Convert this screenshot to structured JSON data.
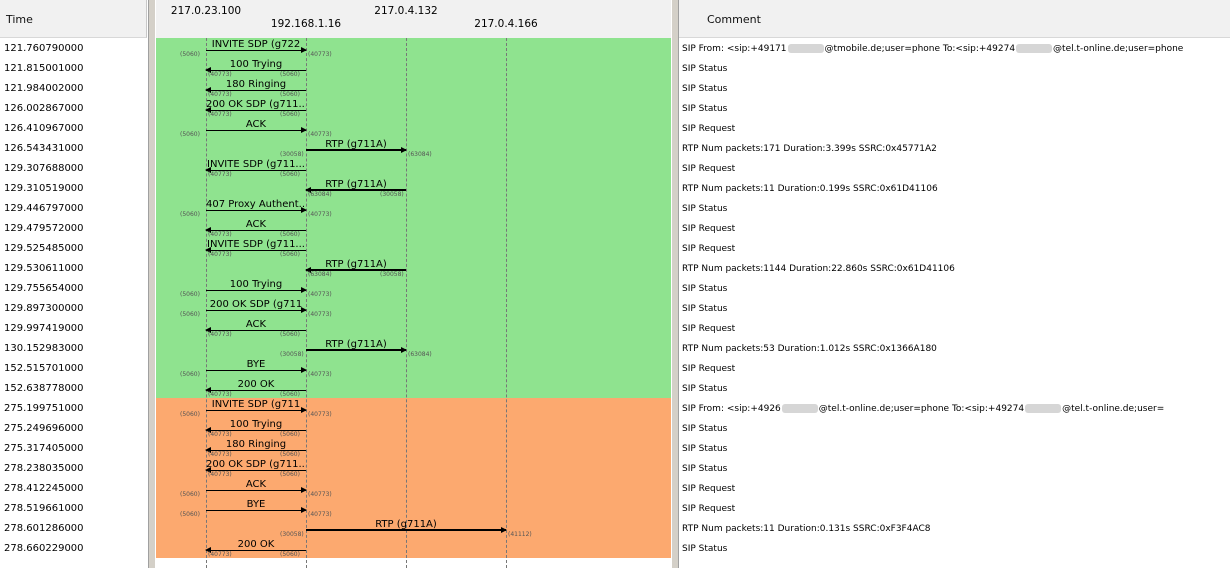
{
  "headers": {
    "time": "Time",
    "comment": "Comment"
  },
  "nodes": [
    {
      "label": "217.0.23.100"
    },
    {
      "label": "192.168.1.16"
    },
    {
      "label": "217.0.4.132"
    },
    {
      "label": "217.0.4.166"
    }
  ],
  "rows": [
    {
      "time": "121.760790000",
      "label": "INVITE SDP (g722",
      "from": 0,
      "to": 1,
      "src_port": "5060",
      "dst_port": "40773",
      "rtp": false,
      "comment_pre": "SIP From: <sip:+49171",
      "comment_mid": "@tmobile.de;user=phone To:<sip:+49274",
      "comment_post": "@tel.t-online.de;user=phone",
      "band": "green"
    },
    {
      "time": "121.815001000",
      "label": "100 Trying",
      "from": 1,
      "to": 0,
      "src_port": "5060",
      "dst_port": "40773",
      "rtp": false,
      "comment": "SIP Status",
      "band": "green"
    },
    {
      "time": "121.984002000",
      "label": "180 Ringing",
      "from": 1,
      "to": 0,
      "src_port": "5060",
      "dst_port": "40773",
      "rtp": false,
      "comment": "SIP Status",
      "band": "green"
    },
    {
      "time": "126.002867000",
      "label": "200 OK SDP (g711...",
      "from": 1,
      "to": 0,
      "src_port": "5060",
      "dst_port": "40773",
      "rtp": false,
      "comment": "SIP Status",
      "band": "green"
    },
    {
      "time": "126.410967000",
      "label": "ACK",
      "from": 0,
      "to": 1,
      "src_port": "5060",
      "dst_port": "40773",
      "rtp": false,
      "comment": "SIP Request",
      "band": "green"
    },
    {
      "time": "126.543431000",
      "label": "RTP (g711A)",
      "from": 1,
      "to": 2,
      "src_port": "30058",
      "dst_port": "63084",
      "rtp": true,
      "comment": "RTP Num packets:171  Duration:3.399s SSRC:0x45771A2",
      "band": "green"
    },
    {
      "time": "129.307688000",
      "label": "INVITE SDP (g711...",
      "from": 1,
      "to": 0,
      "src_port": "5060",
      "dst_port": "40773",
      "rtp": false,
      "comment": "SIP Request",
      "band": "green"
    },
    {
      "time": "129.310519000",
      "label": "RTP (g711A)",
      "from": 2,
      "to": 1,
      "src_port": "30058",
      "dst_port": "63084",
      "rtp": true,
      "comment": "RTP Num packets:11  Duration:0.199s SSRC:0x61D41106",
      "band": "green"
    },
    {
      "time": "129.446797000",
      "label": "407 Proxy Authent...",
      "from": 0,
      "to": 1,
      "src_port": "5060",
      "dst_port": "40773",
      "rtp": false,
      "comment": "SIP Status",
      "band": "green"
    },
    {
      "time": "129.479572000",
      "label": "ACK",
      "from": 1,
      "to": 0,
      "src_port": "5060",
      "dst_port": "40773",
      "rtp": false,
      "comment": "SIP Request",
      "band": "green"
    },
    {
      "time": "129.525485000",
      "label": "INVITE SDP (g711...",
      "from": 1,
      "to": 0,
      "src_port": "5060",
      "dst_port": "40773",
      "rtp": false,
      "comment": "SIP Request",
      "band": "green"
    },
    {
      "time": "129.530611000",
      "label": "RTP (g711A)",
      "from": 2,
      "to": 1,
      "src_port": "30058",
      "dst_port": "63084",
      "rtp": true,
      "comment": "RTP Num packets:1144  Duration:22.860s SSRC:0x61D41106",
      "band": "green"
    },
    {
      "time": "129.755654000",
      "label": "100 Trying",
      "from": 0,
      "to": 1,
      "src_port": "5060",
      "dst_port": "40773",
      "rtp": false,
      "comment": "SIP Status",
      "band": "green"
    },
    {
      "time": "129.897300000",
      "label": "200 OK SDP (g711",
      "from": 0,
      "to": 1,
      "src_port": "5060",
      "dst_port": "40773",
      "rtp": false,
      "comment": "SIP Status",
      "band": "green"
    },
    {
      "time": "129.997419000",
      "label": "ACK",
      "from": 1,
      "to": 0,
      "src_port": "5060",
      "dst_port": "40773",
      "rtp": false,
      "comment": "SIP Request",
      "band": "green"
    },
    {
      "time": "130.152983000",
      "label": "RTP (g711A)",
      "from": 1,
      "to": 2,
      "src_port": "30058",
      "dst_port": "63084",
      "rtp": true,
      "comment": "RTP Num packets:53  Duration:1.012s SSRC:0x1366A180",
      "band": "green"
    },
    {
      "time": "152.515701000",
      "label": "BYE",
      "from": 0,
      "to": 1,
      "src_port": "5060",
      "dst_port": "40773",
      "rtp": false,
      "comment": "SIP Request",
      "band": "green"
    },
    {
      "time": "152.638778000",
      "label": "200 OK",
      "from": 1,
      "to": 0,
      "src_port": "5060",
      "dst_port": "40773",
      "rtp": false,
      "comment": "SIP Status",
      "band": "green"
    },
    {
      "time": "275.199751000",
      "label": "INVITE SDP (g711",
      "from": 0,
      "to": 1,
      "src_port": "5060",
      "dst_port": "40773",
      "rtp": false,
      "comment_pre": "SIP From: <sip:+4926",
      "comment_mid": "@tel.t-online.de;user=phone To:<sip:+49274",
      "comment_post": "@tel.t-online.de;user=",
      "band": "orange"
    },
    {
      "time": "275.249696000",
      "label": "100 Trying",
      "from": 1,
      "to": 0,
      "src_port": "5060",
      "dst_port": "40773",
      "rtp": false,
      "comment": "SIP Status",
      "band": "orange"
    },
    {
      "time": "275.317405000",
      "label": "180 Ringing",
      "from": 1,
      "to": 0,
      "src_port": "5060",
      "dst_port": "40773",
      "rtp": false,
      "comment": "SIP Status",
      "band": "orange"
    },
    {
      "time": "278.238035000",
      "label": "200 OK SDP (g711...",
      "from": 1,
      "to": 0,
      "src_port": "5060",
      "dst_port": "40773",
      "rtp": false,
      "comment": "SIP Status",
      "band": "orange"
    },
    {
      "time": "278.412245000",
      "label": "ACK",
      "from": 0,
      "to": 1,
      "src_port": "5060",
      "dst_port": "40773",
      "rtp": false,
      "comment": "SIP Request",
      "band": "orange"
    },
    {
      "time": "278.519661000",
      "label": "BYE",
      "from": 0,
      "to": 1,
      "src_port": "5060",
      "dst_port": "40773",
      "rtp": false,
      "comment": "SIP Request",
      "band": "orange"
    },
    {
      "time": "278.601286000",
      "label": "RTP (g711A)",
      "from": 1,
      "to": 3,
      "src_port": "30058",
      "dst_port": "41112",
      "rtp": true,
      "comment": "RTP Num packets:11  Duration:0.131s SSRC:0xF3F4AC8",
      "band": "orange"
    },
    {
      "time": "278.660229000",
      "label": "200 OK",
      "from": 1,
      "to": 0,
      "src_port": "5060",
      "dst_port": "40773",
      "rtp": false,
      "comment": "SIP Status",
      "band": "orange"
    }
  ],
  "colors": {
    "green_band": "#8fe38f",
    "orange_band": "#fca96f",
    "header_bg": "#f1f1f1"
  }
}
